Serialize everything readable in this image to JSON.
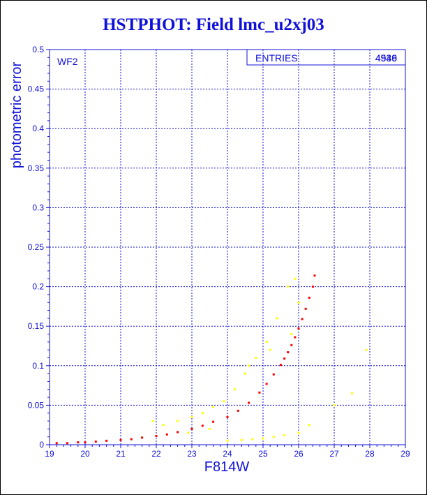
{
  "chart_data": {
    "type": "scatter",
    "title": "HSTPHOT: Field lmc_u2xj03",
    "xlabel": "F814W",
    "ylabel": "photometric error",
    "xlim": [
      19,
      29
    ],
    "ylim": [
      0,
      0.5
    ],
    "x_ticks": [
      "19",
      "20",
      "21",
      "22",
      "23",
      "24",
      "25",
      "26",
      "27",
      "28",
      "29"
    ],
    "y_ticks": [
      "0",
      "0.05",
      "0.1",
      "0.15",
      "0.2",
      "0.25",
      "0.3",
      "0.35",
      "0.4",
      "0.45",
      "0.5"
    ],
    "grid": true,
    "panel_label": "WF2",
    "stats_box": {
      "label": "ENTRIES",
      "values": [
        "4939",
        "4546"
      ]
    },
    "series": [
      {
        "color": "#ff0000",
        "x": [
          19.2,
          19.5,
          19.8,
          20.0,
          20.3,
          20.6,
          21.0,
          21.3,
          21.6,
          22.0,
          22.3,
          22.6,
          23.0,
          23.3,
          23.6,
          24.0,
          24.3,
          24.6,
          24.9,
          25.1,
          25.3,
          25.5,
          25.6,
          25.7,
          25.8,
          25.9,
          26.0,
          26.1,
          26.2,
          26.3,
          26.4,
          26.45
        ],
        "y": [
          0.002,
          0.002,
          0.003,
          0.003,
          0.004,
          0.005,
          0.006,
          0.007,
          0.009,
          0.011,
          0.013,
          0.016,
          0.02,
          0.024,
          0.029,
          0.035,
          0.043,
          0.053,
          0.066,
          0.077,
          0.089,
          0.101,
          0.109,
          0.117,
          0.126,
          0.136,
          0.147,
          0.159,
          0.172,
          0.186,
          0.2,
          0.214
        ]
      },
      {
        "color": "#ffff00",
        "x": [
          21.9,
          22.2,
          22.6,
          23.0,
          23.3,
          23.6,
          23.9,
          24.2,
          24.5,
          24.8,
          25.1,
          25.4,
          25.7,
          25.9,
          24.0,
          24.4,
          24.7,
          25.0,
          25.3,
          25.6,
          26.0,
          26.3,
          27.0,
          27.5,
          27.9,
          24.6,
          25.2,
          25.8,
          26.0,
          23.5,
          22.9
        ],
        "y": [
          0.03,
          0.025,
          0.03,
          0.035,
          0.04,
          0.048,
          0.055,
          0.07,
          0.09,
          0.11,
          0.13,
          0.16,
          0.2,
          0.21,
          0.005,
          0.006,
          0.007,
          0.008,
          0.01,
          0.012,
          0.015,
          0.025,
          0.05,
          0.065,
          0.12,
          0.1,
          0.12,
          0.14,
          0.18,
          0.02,
          0.015
        ]
      }
    ]
  }
}
